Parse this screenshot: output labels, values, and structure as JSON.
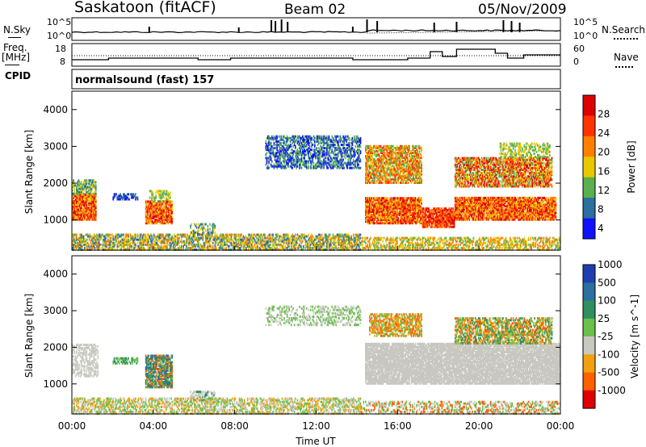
{
  "header": {
    "title": "Saskatoon (fitACF)",
    "beam": "Beam 02",
    "date": "05/Nov/2009"
  },
  "summary_labels": {
    "nsky": "N.Sky",
    "nsky_top": "10^5",
    "nsky_bottom": "10^0",
    "nsearch": "N.Search",
    "nsearch_top": "10^5",
    "nsearch_bottom": "10^0",
    "freq_line1": "Freq.",
    "freq_line2": "[MHz]",
    "freq_top": "18",
    "freq_bottom": "8",
    "nave": "Nave",
    "nave_top": "60",
    "nave_bottom": "0",
    "cpid": "CPID",
    "cpid_text": "normalsound (fast) 157"
  },
  "chart_data": [
    {
      "type": "heatmap",
      "name": "power",
      "ylabel": "Slant Range [km]",
      "xlabel": "",
      "x_ticks": [],
      "y_ticks": [
        "1000",
        "2000",
        "3000",
        "4000"
      ],
      "ylim": [
        180,
        4500
      ],
      "xlim": [
        0,
        24
      ],
      "colorbar_label": "Power [dB]",
      "colorbar_ticks": [
        "28",
        "24",
        "20",
        "16",
        "12",
        "8",
        "4"
      ],
      "colorbar_colors": [
        "#dd0000",
        "#ff3300",
        "#ff8000",
        "#e8c800",
        "#5ab04f",
        "#2a6fa0",
        "#1010ff"
      ]
    },
    {
      "type": "heatmap",
      "name": "velocity",
      "ylabel": "Slant Range [km]",
      "xlabel": "Time UT",
      "x_ticks": [
        "00:00",
        "04:00",
        "08:00",
        "12:00",
        "16:00",
        "20:00",
        "00:00"
      ],
      "y_ticks": [
        "1000",
        "2000",
        "3000",
        "4000"
      ],
      "ylim": [
        180,
        4500
      ],
      "xlim": [
        0,
        24
      ],
      "colorbar_label": "Velocity [m s^-1]",
      "colorbar_ticks": [
        "1000",
        "500",
        "100",
        "25",
        "-25",
        "-100",
        "-500",
        "-1000"
      ],
      "colorbar_colors": [
        "#1f3fb0",
        "#2a6fa0",
        "#2f8f5f",
        "#6ac04a",
        "#c8c8c0",
        "#f0a010",
        "#ff6000",
        "#e00000"
      ]
    }
  ]
}
